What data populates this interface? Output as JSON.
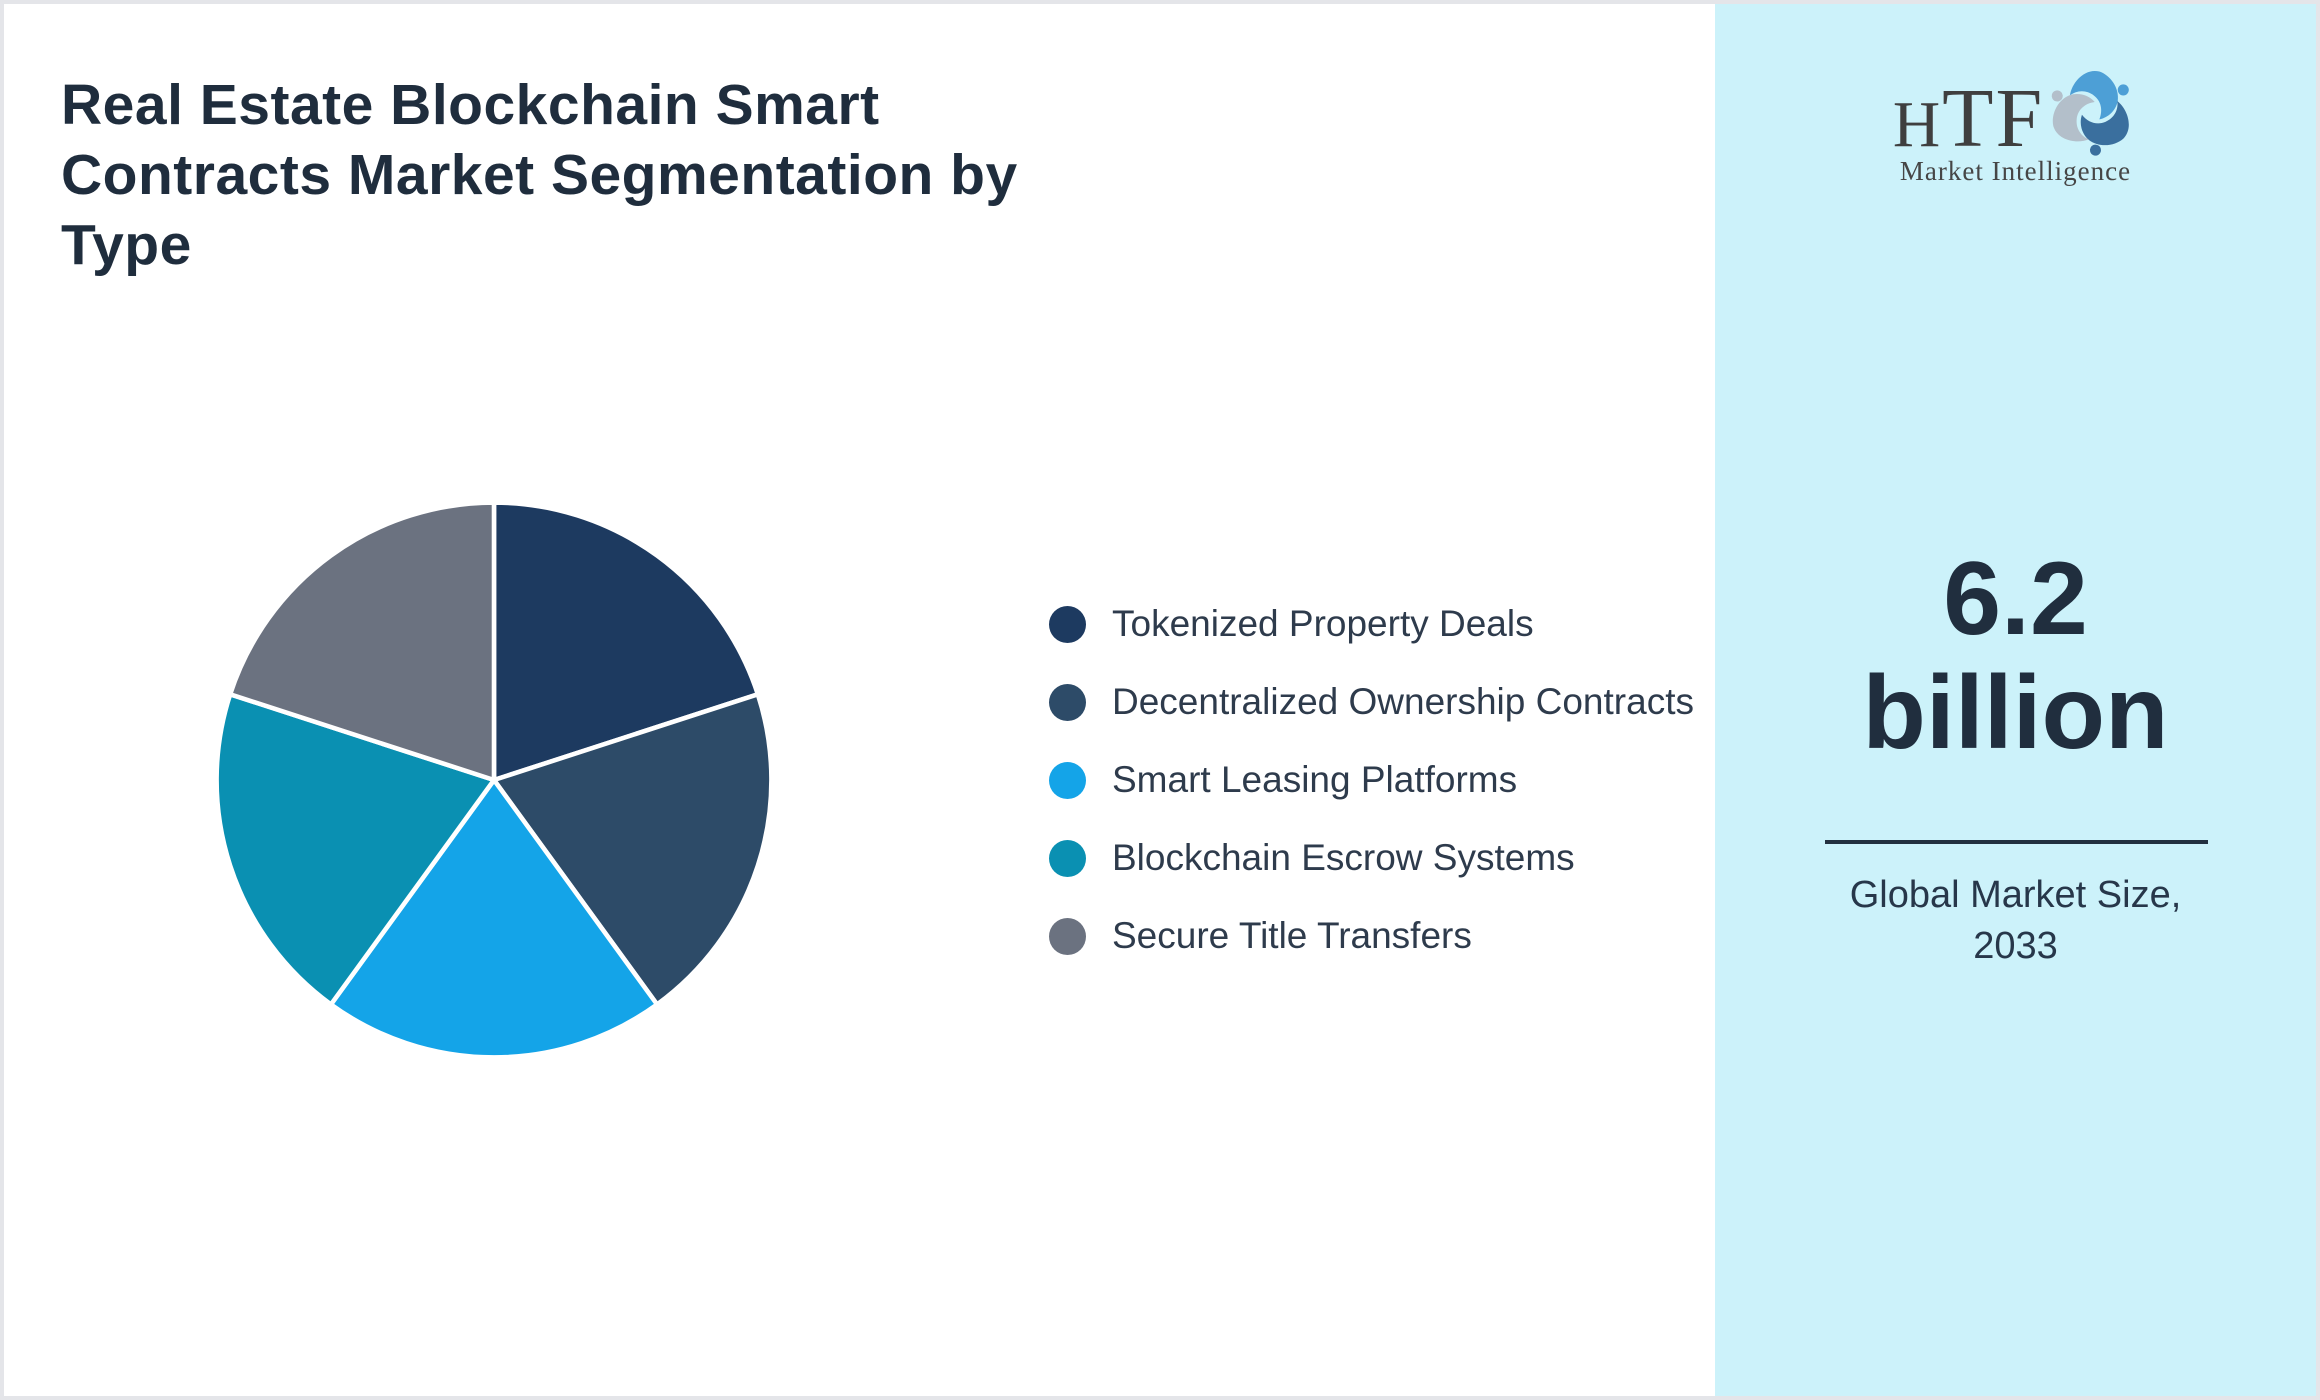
{
  "page": {
    "background": "#ffffff",
    "border_color": "#e4e5e9"
  },
  "title": "Real Estate Blockchain Smart Contracts Market Segmentation by Type",
  "chart_data": {
    "type": "pie",
    "title": "Real Estate Blockchain Smart Contracts Market Segmentation by Type",
    "labels": [
      "Tokenized Property Deals",
      "Decentralized Ownership Contracts",
      "Smart Leasing Platforms",
      "Blockchain Escrow Systems",
      "Secure Title Transfers"
    ],
    "values": [
      20,
      20,
      20,
      20,
      20
    ],
    "colors": [
      "#1d3a60",
      "#2d4b68",
      "#14a4e8",
      "#0a90b2",
      "#6b7280"
    ],
    "start_angle_deg": -90,
    "direction": "clockwise",
    "slice_border_color": "#ffffff",
    "legend_position": "right"
  },
  "sidebar": {
    "background": "#ccf2fa",
    "logo": {
      "text_h": "H",
      "text_tf": "TF",
      "subtext": "Market Intelligence",
      "dolphin_colors": [
        "#4d9fd6",
        "#3a6f9e",
        "#b3bfca"
      ]
    },
    "market_size": {
      "value": "6.2",
      "unit": "billion",
      "label_line1": "Global Market Size,",
      "label_line2": "2033"
    }
  }
}
